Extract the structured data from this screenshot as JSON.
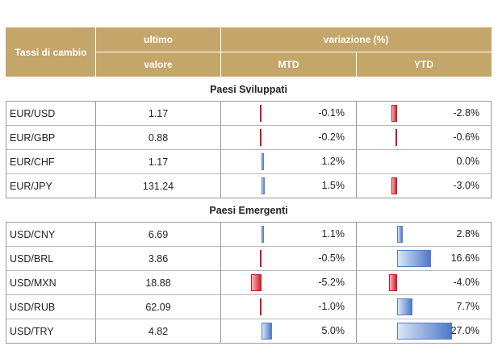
{
  "header": {
    "pair_label": "Tassi di cambio",
    "last_label_line1": "ultimo",
    "last_label_line2": "valore",
    "change_label": "variazione (%)",
    "mtd_label": "MTD",
    "ytd_label": "YTD"
  },
  "colors": {
    "header_bg": "#c4a66a",
    "negative": "#d61f2c",
    "positive": "#4d79c7"
  },
  "sections": [
    {
      "title": "Paesi Sviluppati",
      "rows": [
        {
          "pair": "EUR/USD",
          "last": "1.17",
          "mtd": -0.1,
          "mtd_text": "-0.1%",
          "ytd": -2.8,
          "ytd_text": "-2.8%"
        },
        {
          "pair": "EUR/GBP",
          "last": "0.88",
          "mtd": -0.2,
          "mtd_text": "-0.2%",
          "ytd": -0.6,
          "ytd_text": "-0.6%"
        },
        {
          "pair": "EUR/CHF",
          "last": "1.17",
          "mtd": 1.2,
          "mtd_text": "1.2%",
          "ytd": 0.0,
          "ytd_text": "0.0%"
        },
        {
          "pair": "EUR/JPY",
          "last": "131.24",
          "mtd": 1.5,
          "mtd_text": "1.5%",
          "ytd": -3.0,
          "ytd_text": "-3.0%"
        }
      ]
    },
    {
      "title": "Paesi Emergenti",
      "rows": [
        {
          "pair": "USD/CNY",
          "last": "6.69",
          "mtd": 1.1,
          "mtd_text": "1.1%",
          "ytd": 2.8,
          "ytd_text": "2.8%"
        },
        {
          "pair": "USD/BRL",
          "last": "3.86",
          "mtd": -0.5,
          "mtd_text": "-0.5%",
          "ytd": 16.6,
          "ytd_text": "16.6%"
        },
        {
          "pair": "USD/MXN",
          "last": "18.88",
          "mtd": -5.2,
          "mtd_text": "-5.2%",
          "ytd": -4.0,
          "ytd_text": "-4.0%"
        },
        {
          "pair": "USD/RUB",
          "last": "62.09",
          "mtd": -1.0,
          "mtd_text": "-1.0%",
          "ytd": 7.7,
          "ytd_text": "7.7%"
        },
        {
          "pair": "USD/TRY",
          "last": "4.82",
          "mtd": 5.0,
          "mtd_text": "5.0%",
          "ytd": 27.0,
          "ytd_text": "27.0%"
        }
      ]
    }
  ]
}
